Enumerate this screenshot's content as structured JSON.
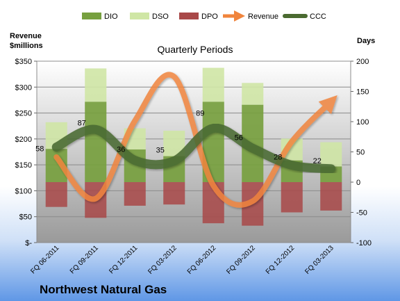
{
  "chart_data": {
    "type": "bar",
    "title": "Quarterly Periods",
    "company": "Northwest Natural Gas",
    "y_left_label_line1": "Revenue",
    "y_left_label_line2": "$millions",
    "y_right_label": "Days",
    "categories": [
      "FQ 06-2011",
      "FQ 09-2011",
      "FQ 12-2011",
      "FQ 03-2012",
      "FQ 06-2012",
      "FQ 09-2012",
      "FQ 12-2012",
      "FQ 03-2013"
    ],
    "y_left": {
      "min": 0,
      "max": 350,
      "ticks": [
        0,
        50,
        100,
        150,
        200,
        250,
        300,
        350
      ],
      "tick_labels": [
        "$-",
        "$50",
        "$100",
        "$150",
        "$200",
        "$250",
        "$300",
        "$350"
      ]
    },
    "y_right": {
      "min": -100,
      "max": 200,
      "ticks": [
        -100,
        -50,
        0,
        50,
        100,
        150,
        200
      ],
      "tick_labels": [
        "-100",
        "-50",
        "0",
        "50",
        "100",
        "150",
        "200"
      ]
    },
    "grid": true,
    "legend_position": "top",
    "series": [
      {
        "name": "DIO",
        "type": "stacked-bar",
        "axis": "right",
        "color": "#77a03f",
        "values": [
          55,
          133,
          54,
          43,
          133,
          128,
          36,
          26
        ]
      },
      {
        "name": "DSO",
        "type": "stacked-bar",
        "axis": "right",
        "color": "#cfe6a5",
        "values": [
          44,
          55,
          35,
          42,
          56,
          36,
          36,
          40
        ]
      },
      {
        "name": "DPO",
        "type": "stacked-bar",
        "axis": "right",
        "color": "#a84848",
        "values": [
          -41,
          -59,
          -39,
          -37,
          -68,
          -72,
          -50,
          -47
        ]
      },
      {
        "name": "Revenue",
        "type": "line",
        "axis": "left",
        "color": "#f0843c",
        "values": [
          165,
          85,
          235,
          320,
          110,
          80,
          195,
          272
        ]
      },
      {
        "name": "CCC",
        "type": "line",
        "axis": "right",
        "color": "#4a6a30",
        "values": [
          58,
          87,
          36,
          35,
          89,
          56,
          28,
          22
        ],
        "labels": [
          "58",
          "87",
          "36",
          "35",
          "89",
          "56",
          "28",
          "22"
        ]
      }
    ]
  }
}
